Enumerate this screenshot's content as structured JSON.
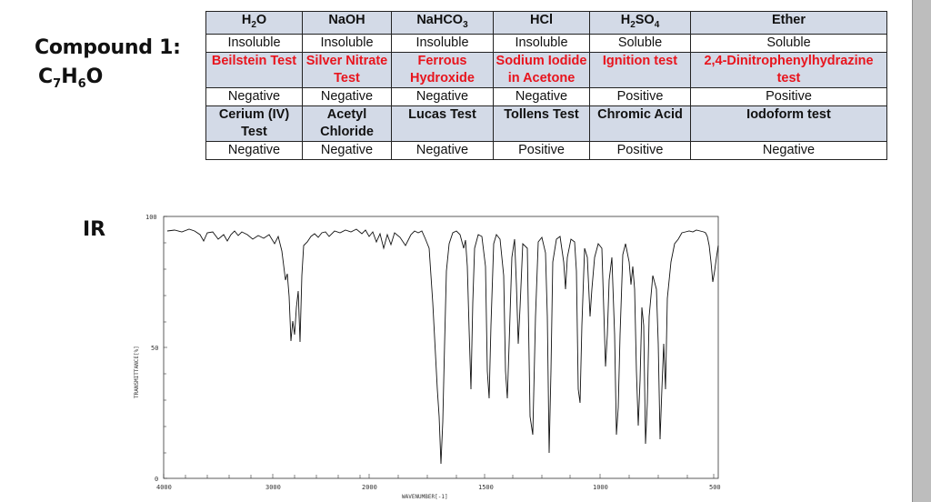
{
  "compound": {
    "title": "Compound 1:",
    "formula_parts": [
      "C",
      "7",
      "H",
      "6",
      "O"
    ]
  },
  "ir_label": "IR",
  "table": {
    "rows": [
      {
        "kind": "head",
        "cells": [
          "",
          "NaOH",
          "",
          "HCl",
          "",
          "Ether"
        ]
      },
      {
        "kind": "plain",
        "cells": [
          "Insoluble",
          "Insoluble",
          "Insoluble",
          "Insoluble",
          "Soluble",
          "Soluble"
        ]
      },
      {
        "kind": "test",
        "cells": [
          "Beilstein Test",
          "Silver Nitrate Test",
          "Ferrous Hydroxide",
          "Sodium Iodide in Acetone",
          "Ignition test",
          "2,4-Dinitrophenylhydrazine test"
        ]
      },
      {
        "kind": "result",
        "cells": [
          "Negative",
          "Negative",
          "Negative",
          "Negative",
          "Positive",
          "Positive"
        ]
      },
      {
        "kind": "test2",
        "cells": [
          "Cerium (IV) Test",
          "Acetyl Chloride",
          "Lucas Test",
          "Tollens Test",
          "Chromic Acid",
          "Iodoform test"
        ]
      },
      {
        "kind": "plain",
        "cells": [
          "Negative",
          "Negative",
          "Negative",
          "Positive",
          "Positive",
          "Negative"
        ]
      }
    ],
    "formula_headers": {
      "h2o": [
        "H",
        "2",
        "O"
      ],
      "nahco3": [
        "NaHCO",
        "3"
      ],
      "h2so4": [
        "H",
        "2",
        "SO",
        "4"
      ]
    }
  },
  "ir_spectrum": {
    "y_top_label": "100",
    "y_mid_label": "50",
    "y_bottom_label": "0",
    "y_axis_title": "TRANSMITTANCE[%]",
    "x_axis_title": "WAVENUMBER[-1]",
    "x_tick_labels": [
      "4000",
      "3000",
      "2000",
      "1500",
      "1000",
      "500"
    ]
  },
  "colors": {
    "header_fill": "#d3dae7",
    "red_text": "#e8141d",
    "border": "#222222"
  }
}
